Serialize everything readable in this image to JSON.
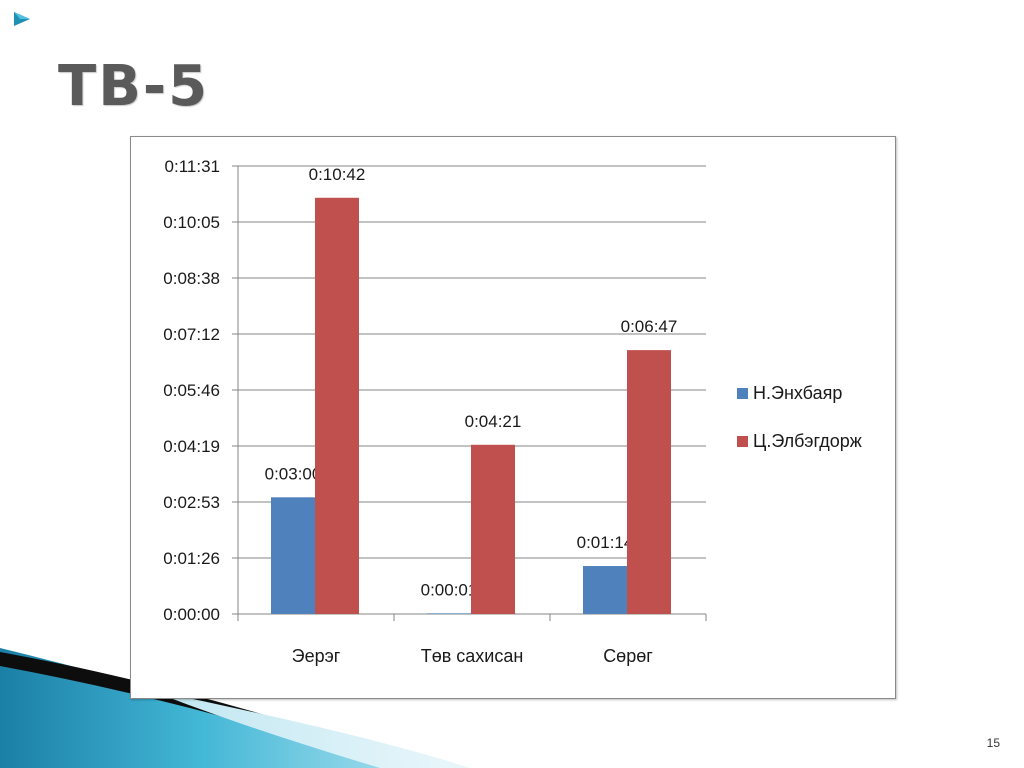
{
  "slide": {
    "title": "ТВ-5",
    "page_number": "15"
  },
  "colors": {
    "accent_teal": "#2a9fbf",
    "series_1": "#4f81bd",
    "series_2": "#c0504d",
    "gridline": "#868686"
  },
  "chart_data": {
    "type": "bar",
    "title": "",
    "xlabel": "",
    "ylabel": "",
    "categories": [
      "Эерэг",
      "Төв сахисан",
      "Сөрөг"
    ],
    "series": [
      {
        "name": "Н.Энхбаяр",
        "color": "#4f81bd",
        "values_seconds": [
          180,
          1,
          74
        ],
        "labels": [
          "0:03:00",
          "0:00:01",
          "0:01:14"
        ]
      },
      {
        "name": "Ц.Элбэгдорж",
        "color": "#c0504d",
        "values_seconds": [
          642,
          261,
          407
        ],
        "labels": [
          "0:10:42",
          "0:04:21",
          "0:06:47"
        ]
      }
    ],
    "y_ticks": [
      "0:00:00",
      "0:01:26",
      "0:02:53",
      "0:04:19",
      "0:05:46",
      "0:07:12",
      "0:08:38",
      "0:10:05",
      "0:11:31"
    ],
    "ylim_seconds": [
      0,
      691
    ],
    "grid": true,
    "legend_position": "right"
  }
}
